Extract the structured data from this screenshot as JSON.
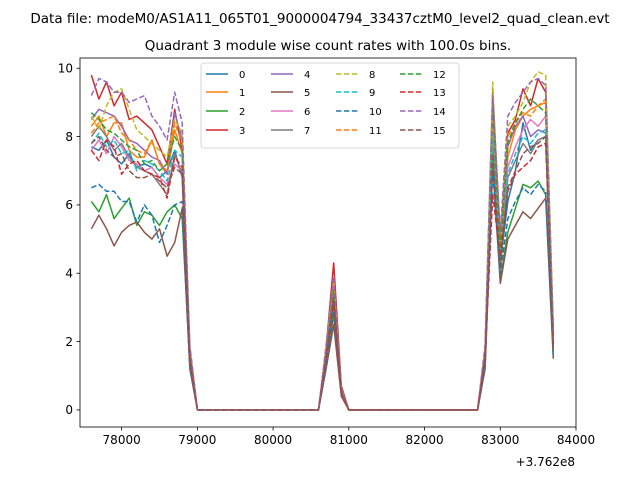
{
  "chart_data": {
    "type": "line",
    "suptitle": "Data file: modeM0/AS1A11_065T01_9000004794_33437cztM0_level2_quad_clean.evt",
    "title": "Quadrant 3 module wise count rates with 100.0s bins.",
    "xlabel": "",
    "ylabel": "",
    "x_offset_label": "+3.762e8",
    "xlim": [
      77450,
      84000
    ],
    "ylim": [
      -0.5,
      10.3
    ],
    "x_ticks": [
      78000,
      79000,
      80000,
      81000,
      82000,
      83000,
      84000
    ],
    "x_tick_labels": [
      "78000",
      "79000",
      "80000",
      "81000",
      "82000",
      "83000",
      "84000"
    ],
    "y_ticks": [
      0,
      2,
      4,
      6,
      8,
      10
    ],
    "y_tick_labels": [
      "0",
      "2",
      "4",
      "6",
      "8",
      "10"
    ],
    "grid": false,
    "legend": {
      "placement": "top-center",
      "columns": 4
    },
    "gaps": [
      [
        79000,
        80600
      ],
      [
        81000,
        82700
      ]
    ],
    "x_segments": [
      [
        77600,
        77700,
        77800,
        77900,
        78000,
        78100,
        78200,
        78300,
        78400,
        78500,
        78600,
        78700,
        78800,
        78900,
        79000
      ],
      [
        80600,
        80700,
        80800,
        80900,
        81000
      ],
      [
        82700,
        82800,
        82900,
        83000,
        83100,
        83200,
        83300,
        83400,
        83500,
        83600,
        83700
      ]
    ],
    "series": [
      {
        "name": "0",
        "color": "#1f77b4",
        "dash": "solid",
        "segments": [
          [
            7.7,
            7.6,
            7.9,
            7.4,
            7.2,
            7.5,
            7.1,
            7.2,
            7.1,
            6.8,
            7.0,
            7.6,
            6.8,
            1.5,
            0
          ],
          [
            0,
            1.5,
            3.0,
            0.5,
            0
          ],
          [
            0,
            1.5,
            8.4,
            4.3,
            6.1,
            7.0,
            8.4,
            7.6,
            7.9,
            8.0,
            2.0
          ]
        ]
      },
      {
        "name": "1",
        "color": "#ff7f0e",
        "dash": "solid",
        "segments": [
          [
            8.3,
            8.6,
            8.0,
            8.4,
            8.4,
            7.6,
            7.4,
            7.4,
            7.9,
            7.2,
            6.9,
            8.2,
            7.5,
            1.6,
            0
          ],
          [
            0,
            1.6,
            3.5,
            0.6,
            0
          ],
          [
            0,
            1.6,
            8.8,
            4.6,
            7.4,
            8.2,
            8.6,
            8.8,
            8.9,
            9.0,
            2.2
          ]
        ]
      },
      {
        "name": "2",
        "color": "#2ca02c",
        "dash": "solid",
        "segments": [
          [
            6.1,
            5.8,
            6.3,
            5.6,
            5.9,
            6.2,
            5.4,
            5.8,
            5.7,
            5.4,
            5.8,
            6.0,
            5.6,
            1.3,
            0
          ],
          [
            0,
            1.3,
            2.8,
            0.5,
            0
          ],
          [
            0,
            1.3,
            7.7,
            3.8,
            5.2,
            5.9,
            6.6,
            6.5,
            6.7,
            6.3,
            1.7
          ]
        ]
      },
      {
        "name": "3",
        "color": "#d62728",
        "dash": "solid",
        "segments": [
          [
            9.8,
            9.1,
            9.6,
            8.9,
            9.3,
            8.5,
            8.6,
            8.4,
            8.2,
            7.7,
            7.2,
            8.8,
            7.6,
            1.8,
            0
          ],
          [
            0,
            1.8,
            4.3,
            0.7,
            0
          ],
          [
            0,
            1.8,
            9.3,
            5.0,
            8.1,
            8.5,
            9.4,
            8.9,
            9.7,
            9.3,
            2.3
          ]
        ]
      },
      {
        "name": "4",
        "color": "#9467bd",
        "dash": "solid",
        "segments": [
          [
            8.5,
            8.8,
            8.7,
            8.6,
            8.3,
            7.9,
            7.8,
            7.6,
            7.4,
            7.3,
            6.9,
            8.7,
            7.9,
            1.7,
            0
          ],
          [
            0,
            1.7,
            3.7,
            0.6,
            0
          ],
          [
            0,
            1.7,
            8.8,
            4.5,
            7.7,
            8.3,
            8.6,
            8.0,
            8.2,
            8.1,
            2.1
          ]
        ]
      },
      {
        "name": "5",
        "color": "#8c564b",
        "dash": "solid",
        "segments": [
          [
            5.3,
            5.7,
            5.3,
            4.8,
            5.2,
            5.4,
            5.5,
            5.2,
            5.0,
            5.3,
            4.5,
            4.9,
            5.9,
            1.2,
            0
          ],
          [
            0,
            1.2,
            2.5,
            0.4,
            0
          ],
          [
            0,
            1.2,
            7.2,
            3.7,
            5.0,
            5.4,
            5.8,
            5.6,
            5.9,
            6.2,
            1.5
          ]
        ]
      },
      {
        "name": "6",
        "color": "#e377c2",
        "dash": "solid",
        "segments": [
          [
            7.6,
            7.9,
            7.5,
            8.0,
            7.7,
            7.3,
            7.2,
            7.0,
            7.1,
            6.8,
            6.6,
            7.2,
            7.0,
            1.5,
            0
          ],
          [
            0,
            1.5,
            3.3,
            0.5,
            0
          ],
          [
            0,
            1.5,
            8.1,
            4.3,
            7.1,
            7.7,
            8.2,
            8.5,
            8.3,
            8.6,
            2.0
          ]
        ]
      },
      {
        "name": "7",
        "color": "#7f7f7f",
        "dash": "solid",
        "segments": [
          [
            8.0,
            8.3,
            8.0,
            7.6,
            7.8,
            7.4,
            7.1,
            7.0,
            6.9,
            6.6,
            6.3,
            7.5,
            6.9,
            1.4,
            0
          ],
          [
            0,
            1.4,
            3.1,
            0.5,
            0
          ],
          [
            0,
            1.4,
            8.1,
            4.1,
            6.8,
            7.3,
            7.8,
            7.5,
            7.9,
            8.0,
            1.9
          ]
        ]
      },
      {
        "name": "8",
        "color": "#bcbd22",
        "dash": "dashed",
        "segments": [
          [
            8.6,
            8.2,
            8.9,
            9.3,
            9.4,
            8.8,
            8.2,
            8.0,
            7.8,
            7.6,
            7.4,
            8.5,
            8.1,
            1.8,
            0
          ],
          [
            0,
            1.8,
            3.8,
            0.6,
            0
          ],
          [
            0,
            1.8,
            9.6,
            4.7,
            8.3,
            8.6,
            9.0,
            9.6,
            9.9,
            9.8,
            2.4
          ]
        ]
      },
      {
        "name": "9",
        "color": "#17becf",
        "dash": "dashed",
        "segments": [
          [
            7.8,
            8.1,
            7.7,
            7.9,
            7.5,
            7.6,
            7.0,
            7.3,
            7.2,
            7.0,
            6.7,
            7.6,
            7.4,
            1.6,
            0
          ],
          [
            0,
            1.6,
            3.4,
            0.6,
            0
          ],
          [
            0,
            1.6,
            8.2,
            4.3,
            6.9,
            7.5,
            8.0,
            7.8,
            8.1,
            8.2,
            2.0
          ]
        ]
      },
      {
        "name": "10",
        "color": "#1f77b4",
        "dash": "dashed",
        "segments": [
          [
            6.5,
            6.6,
            6.4,
            6.4,
            6.1,
            6.1,
            5.5,
            6.0,
            5.7,
            4.9,
            5.4,
            6.0,
            6.1,
            1.3,
            0
          ],
          [
            0,
            1.3,
            2.9,
            0.5,
            0
          ],
          [
            0,
            1.3,
            7.0,
            4.0,
            5.6,
            6.1,
            6.5,
            6.3,
            6.6,
            6.4,
            1.6
          ]
        ]
      },
      {
        "name": "11",
        "color": "#ff7f0e",
        "dash": "dashed",
        "segments": [
          [
            8.1,
            8.4,
            8.5,
            8.6,
            8.1,
            7.9,
            7.6,
            7.5,
            7.9,
            7.2,
            7.0,
            8.4,
            7.8,
            1.7,
            0
          ],
          [
            0,
            1.7,
            3.6,
            0.6,
            0
          ],
          [
            0,
            1.7,
            8.6,
            4.8,
            8.0,
            8.4,
            8.7,
            8.6,
            8.9,
            9.1,
            2.1
          ]
        ]
      },
      {
        "name": "12",
        "color": "#2ca02c",
        "dash": "dashed",
        "segments": [
          [
            8.7,
            8.5,
            8.2,
            8.1,
            7.9,
            7.7,
            7.6,
            7.2,
            7.3,
            7.0,
            7.2,
            8.0,
            7.6,
            1.6,
            0
          ],
          [
            0,
            1.6,
            3.5,
            0.6,
            0
          ],
          [
            0,
            1.6,
            9.0,
            4.6,
            7.8,
            8.4,
            8.8,
            9.1,
            8.9,
            8.7,
            2.2
          ]
        ]
      },
      {
        "name": "13",
        "color": "#d62728",
        "dash": "dashed",
        "segments": [
          [
            7.6,
            7.3,
            7.9,
            7.7,
            6.9,
            7.2,
            7.3,
            7.0,
            6.9,
            6.8,
            6.2,
            7.4,
            7.1,
            1.5,
            0
          ],
          [
            0,
            1.5,
            3.2,
            0.5,
            0
          ],
          [
            0,
            1.5,
            6.3,
            4.5,
            6.4,
            6.9,
            7.1,
            7.3,
            7.7,
            7.8,
            1.9
          ]
        ]
      },
      {
        "name": "14",
        "color": "#9467bd",
        "dash": "dashed",
        "segments": [
          [
            9.2,
            9.7,
            9.6,
            9.3,
            9.3,
            9.0,
            9.1,
            9.2,
            8.6,
            8.3,
            7.9,
            9.3,
            8.4,
            1.9,
            0
          ],
          [
            0,
            1.9,
            3.9,
            0.6,
            0
          ],
          [
            0,
            1.9,
            9.2,
            5.2,
            8.6,
            9.0,
            9.3,
            9.6,
            9.7,
            9.5,
            2.3
          ]
        ]
      },
      {
        "name": "15",
        "color": "#8c564b",
        "dash": "dashed",
        "segments": [
          [
            7.8,
            8.0,
            7.6,
            7.4,
            7.5,
            7.0,
            6.8,
            6.8,
            6.9,
            6.7,
            6.5,
            7.1,
            6.9,
            1.5,
            0
          ],
          [
            0,
            1.5,
            3.3,
            0.5,
            0
          ],
          [
            0,
            1.5,
            7.5,
            4.2,
            6.5,
            7.0,
            7.5,
            7.7,
            7.8,
            8.0,
            1.8
          ]
        ]
      }
    ]
  }
}
